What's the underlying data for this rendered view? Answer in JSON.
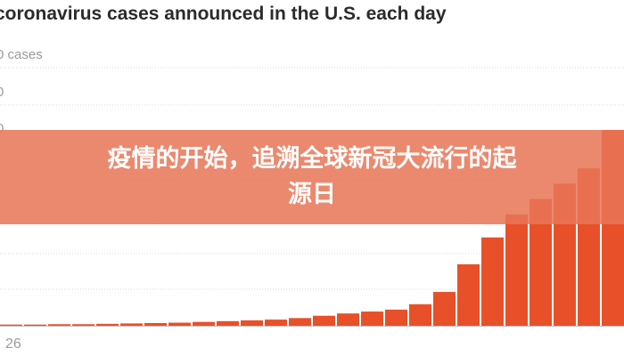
{
  "chart_data": {
    "type": "bar",
    "title": "coronavirus cases announced in the U.S. each day",
    "xlabel": "",
    "ylabel": "",
    "y_tick_labels": [
      "0 cases",
      "0",
      "0"
    ],
    "x_tick_labels": [
      "26"
    ],
    "color": "#e8502a",
    "values": [
      0.1,
      0.1,
      0.1,
      0.2,
      0.2,
      0.3,
      0.3,
      0.4,
      0.4,
      0.5,
      0.6,
      0.7,
      0.8,
      1.0,
      1.2,
      1.4,
      1.6,
      2.0,
      2.6,
      3.2,
      3.7,
      4.2,
      5.6,
      8.8,
      16,
      23,
      29,
      33,
      37,
      41,
      51
    ],
    "ylim": [
      0,
      51
    ],
    "grid": true
  },
  "banner": {
    "text": "疫情的开始，追溯全球新冠大流行的起源日"
  }
}
